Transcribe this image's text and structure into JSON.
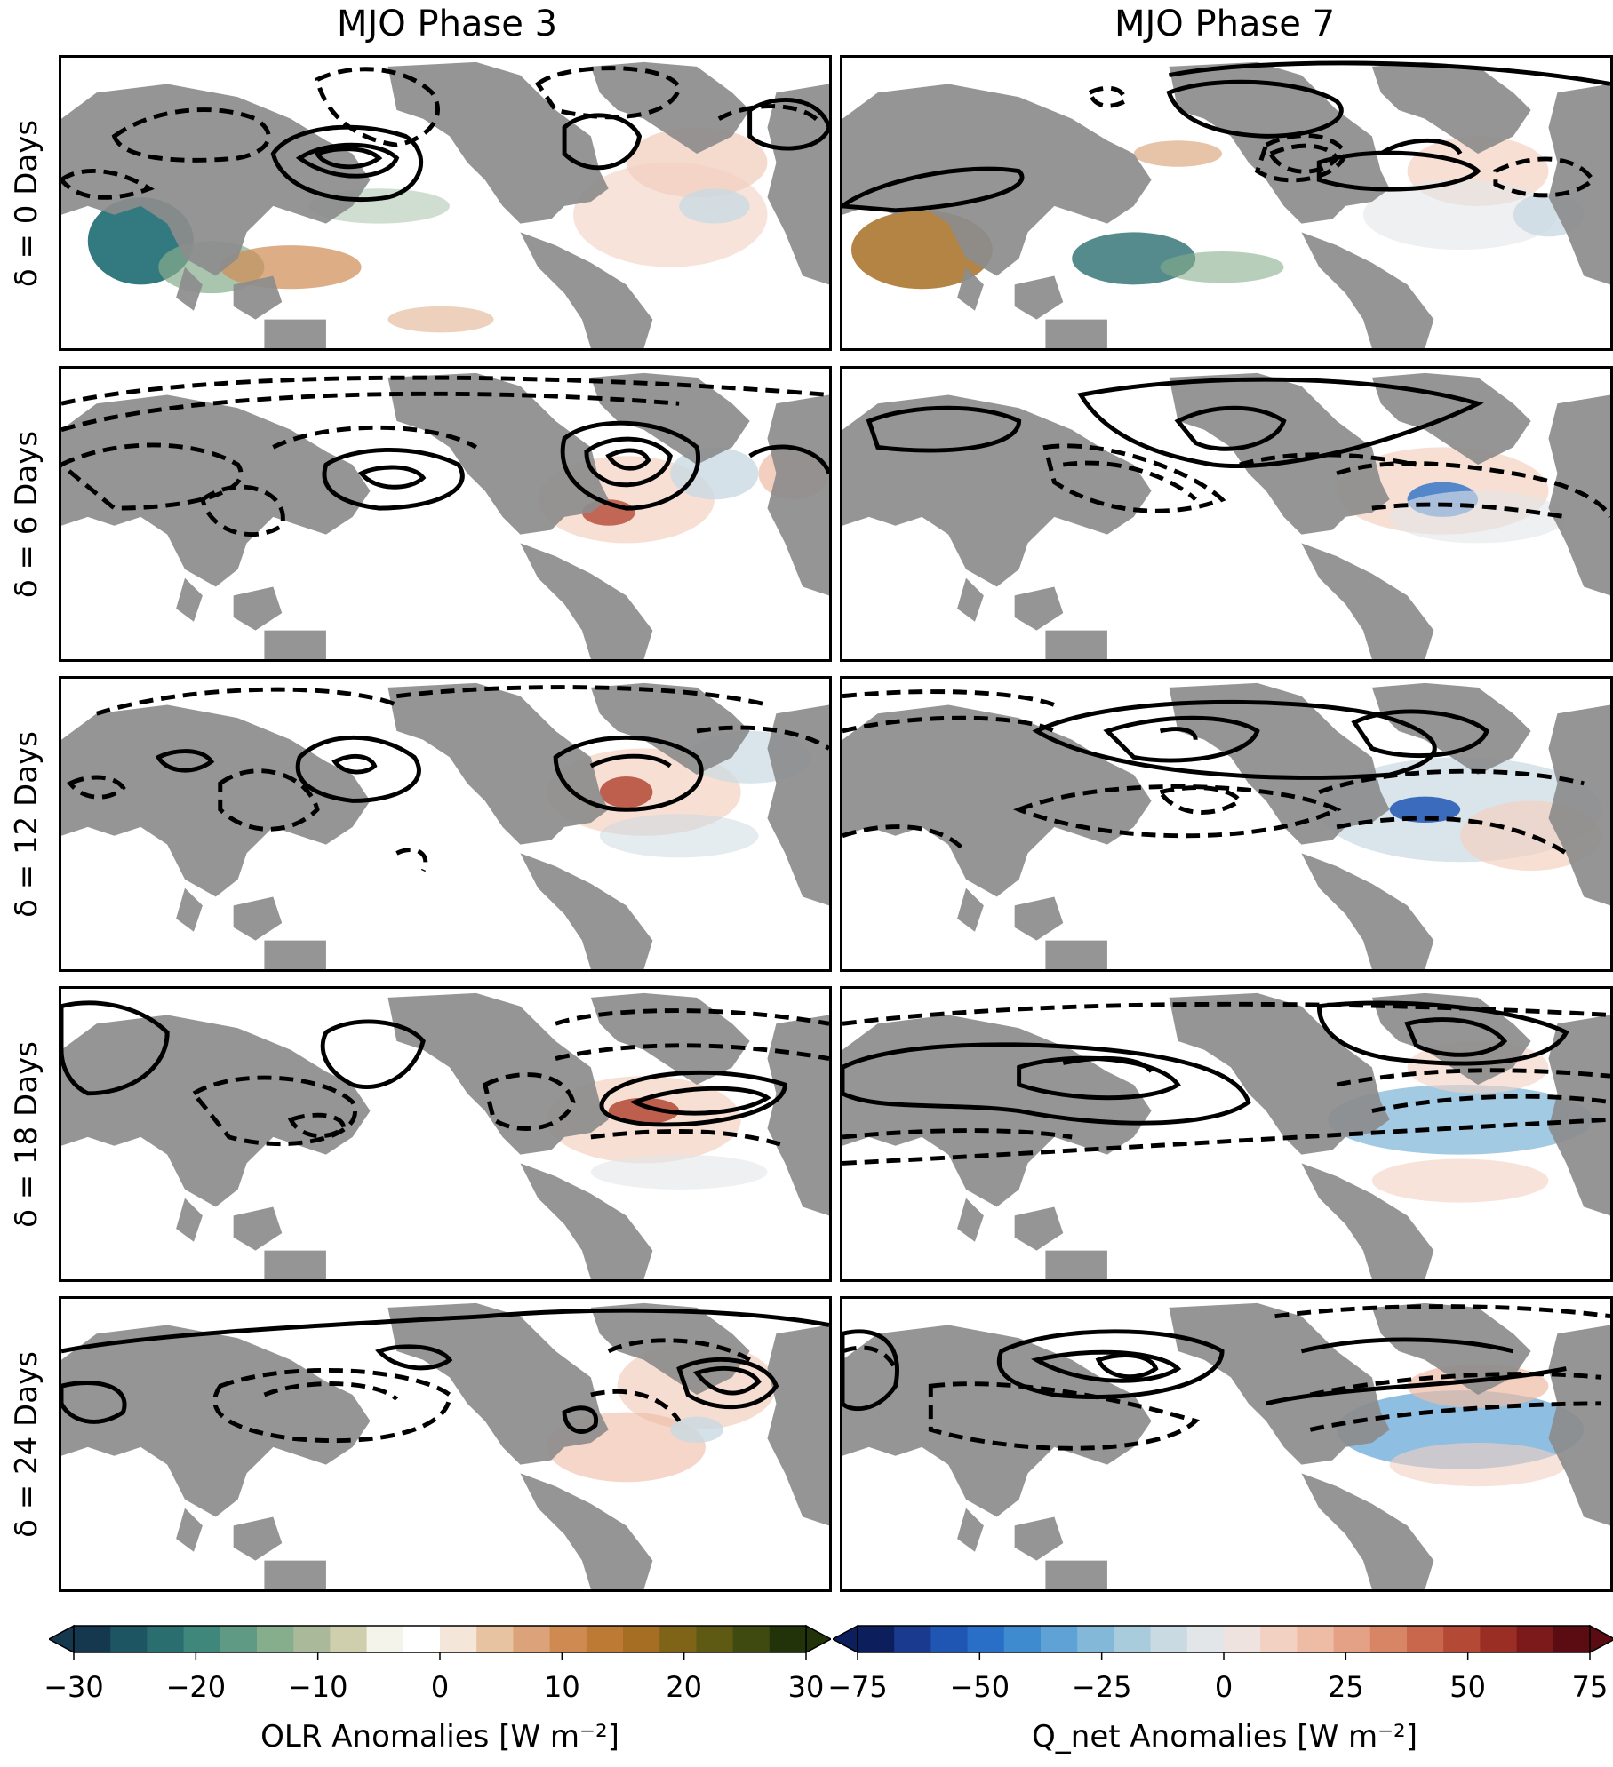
{
  "columns": [
    {
      "title": "MJO Phase 3"
    },
    {
      "title": "MJO Phase 7"
    }
  ],
  "rows": [
    {
      "label": "δ = 0 Days",
      "lag_days": 0
    },
    {
      "label": "δ = 6 Days",
      "lag_days": 6
    },
    {
      "label": "δ = 12 Days",
      "lag_days": 12
    },
    {
      "label": "δ = 18 Days",
      "lag_days": 18
    },
    {
      "label": "δ = 24 Days",
      "lag_days": 24
    }
  ],
  "colorbars": [
    {
      "name": "olr",
      "title": "OLR Anomalies [W m⁻²]",
      "ticks": [
        "−30",
        "−20",
        "−10",
        "0",
        "10",
        "20",
        "30"
      ],
      "range": [
        -30,
        30
      ],
      "colors": [
        "#15384f",
        "#1d5563",
        "#2b6e70",
        "#3f877b",
        "#5f9a85",
        "#86ad8c",
        "#aab99a",
        "#cfcfae",
        "#f5f4ea",
        "#ffffff",
        "#f5e6da",
        "#e8c3a2",
        "#dca37a",
        "#cf8a52",
        "#bc7a34",
        "#a66e22",
        "#7f6418",
        "#5e5a14",
        "#3f4a10",
        "#223309"
      ]
    },
    {
      "name": "qnet",
      "title": "Q_net Anomalies [W m⁻²]",
      "ticks": [
        "−75",
        "−50",
        "−25",
        "0",
        "25",
        "50",
        "75"
      ],
      "range": [
        -75,
        75
      ],
      "colors": [
        "#0c1f5c",
        "#1a3a8f",
        "#1f56b4",
        "#2a6fc7",
        "#3f8bcf",
        "#5ea2d6",
        "#84b8d9",
        "#a9ccdd",
        "#c9dae2",
        "#e3e6e8",
        "#efe3df",
        "#f3d1c2",
        "#eebba4",
        "#e4a185",
        "#d88566",
        "#c9674c",
        "#b44935",
        "#9a2e25",
        "#7c1a1b",
        "#5a0c12"
      ]
    }
  ]
}
